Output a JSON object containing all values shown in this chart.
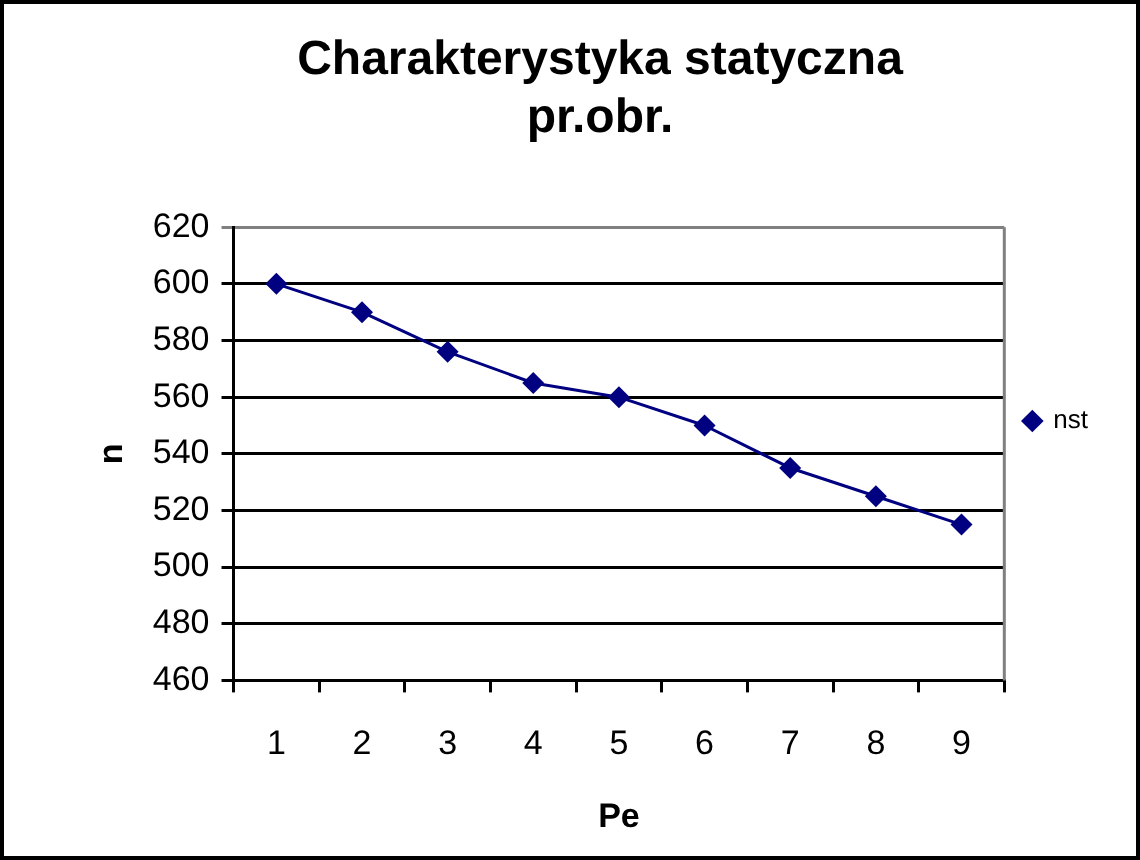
{
  "chart_data": {
    "type": "line",
    "title": "Charakterystyka statyczna pr.obr.",
    "xlabel": "Pe",
    "ylabel": "n",
    "categories": [
      "1",
      "2",
      "3",
      "4",
      "5",
      "6",
      "7",
      "8",
      "9"
    ],
    "series": [
      {
        "name": "nst",
        "color": "#000080",
        "values": [
          600,
          590,
          576,
          565,
          560,
          550,
          535,
          525,
          515
        ]
      }
    ],
    "ylim": [
      460,
      620
    ],
    "yticks": [
      460,
      480,
      500,
      520,
      540,
      560,
      580,
      600,
      620
    ],
    "grid": "y",
    "legend": "right",
    "marker": "diamond"
  }
}
